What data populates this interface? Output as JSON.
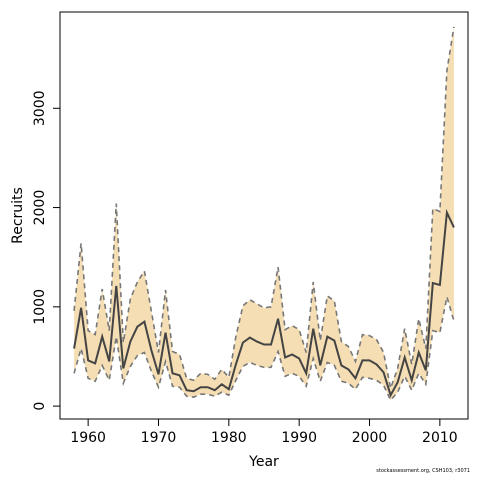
{
  "chart_data": {
    "type": "line",
    "xlabel": "Year",
    "ylabel": "Recruits",
    "xlim": [
      1956,
      2014
    ],
    "ylim": [
      -130,
      3970
    ],
    "x_ticks": [
      1960,
      1970,
      1980,
      1990,
      2000,
      2010
    ],
    "y_ticks": [
      0,
      1000,
      2000,
      3000
    ],
    "grid": false,
    "legend": "none",
    "colors": {
      "band": "#f5deb3",
      "line": "#444444",
      "bounds": "#777777"
    },
    "series": [
      {
        "x": [
          1958,
          1959,
          1960,
          1961,
          1962,
          1963,
          1964,
          1965,
          1966,
          1967,
          1968,
          1969,
          1970,
          1971,
          1972,
          1973,
          1974,
          1975,
          1976,
          1977,
          1978,
          1979,
          1980,
          1981,
          1982,
          1983,
          1984,
          1985,
          1986,
          1987,
          1988,
          1989,
          1990,
          1991,
          1992,
          1993,
          1994,
          1995,
          1996,
          1997,
          1998,
          1999,
          2000,
          2001,
          2002,
          2003,
          2004,
          2005,
          2006,
          2007,
          2008,
          2009,
          2010,
          2011,
          2012
        ],
        "values": [
          580,
          990,
          460,
          430,
          700,
          450,
          1210,
          380,
          650,
          800,
          850,
          560,
          320,
          740,
          330,
          310,
          160,
          150,
          190,
          190,
          160,
          220,
          170,
          420,
          640,
          690,
          650,
          620,
          620,
          880,
          490,
          520,
          480,
          330,
          780,
          410,
          700,
          660,
          410,
          370,
          280,
          460,
          460,
          420,
          340,
          110,
          240,
          490,
          260,
          540,
          360,
          1240,
          1220,
          1950,
          1800
        ]
      },
      {
        "x": [
          1958,
          1959,
          1960,
          1961,
          1962,
          1963,
          1964,
          1965,
          1966,
          1967,
          1968,
          1969,
          1970,
          1971,
          1972,
          1973,
          1974,
          1975,
          1976,
          1977,
          1978,
          1979,
          1980,
          1981,
          1982,
          1983,
          1984,
          1985,
          1986,
          1987,
          1988,
          1989,
          1990,
          1991,
          1992,
          1993,
          1994,
          1995,
          1996,
          1997,
          1998,
          1999,
          2000,
          2001,
          2002,
          2003,
          2004,
          2005,
          2006,
          2007,
          2008,
          2009,
          2010,
          2011,
          2012
        ],
        "values": [
          960,
          1640,
          760,
          720,
          1180,
          760,
          2040,
          640,
          1080,
          1250,
          1360,
          950,
          540,
          1170,
          550,
          520,
          280,
          260,
          330,
          320,
          270,
          370,
          290,
          700,
          1010,
          1070,
          1030,
          990,
          1000,
          1400,
          770,
          810,
          770,
          540,
          1250,
          660,
          1110,
          1060,
          650,
          600,
          450,
          720,
          710,
          670,
          540,
          180,
          380,
          780,
          420,
          880,
          580,
          1990,
          1960,
          3380,
          3820
        ]
      },
      {
        "x": [
          1958,
          1959,
          1960,
          1961,
          1962,
          1963,
          1964,
          1965,
          1966,
          1967,
          1968,
          1969,
          1970,
          1971,
          1972,
          1973,
          1974,
          1975,
          1976,
          1977,
          1978,
          1979,
          1980,
          1981,
          1982,
          1983,
          1984,
          1985,
          1986,
          1987,
          1988,
          1989,
          1990,
          1991,
          1992,
          1993,
          1994,
          1995,
          1996,
          1997,
          1998,
          1999,
          2000,
          2001,
          2002,
          2003,
          2004,
          2005,
          2006,
          2007,
          2008,
          2009,
          2010,
          2011,
          2012
        ],
        "values": [
          330,
          580,
          280,
          250,
          410,
          260,
          700,
          230,
          400,
          510,
          540,
          350,
          190,
          450,
          200,
          190,
          100,
          90,
          120,
          120,
          100,
          140,
          110,
          260,
          400,
          440,
          410,
          390,
          390,
          550,
          300,
          330,
          300,
          200,
          480,
          250,
          440,
          410,
          250,
          230,
          170,
          290,
          280,
          260,
          210,
          60,
          140,
          300,
          160,
          330,
          220,
          760,
          740,
          1100,
          860
        ]
      }
    ]
  },
  "credit": "stockassessment.org, CSH103, r3071"
}
